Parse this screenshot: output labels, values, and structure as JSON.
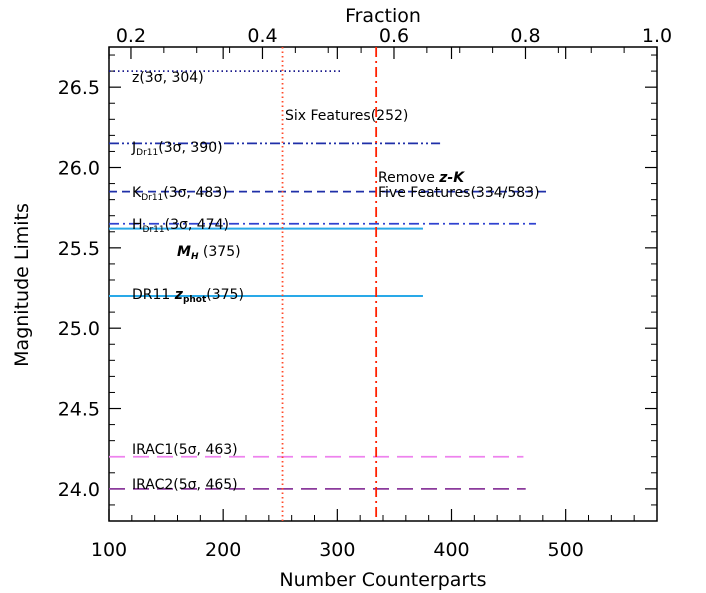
{
  "chart_data": {
    "type": "line",
    "xlabel": "Number Counterparts",
    "ylabel": "Magnitude Limits",
    "top_xlabel": "Fraction",
    "xlim": [
      100,
      580
    ],
    "ylim": [
      23.8,
      26.75
    ],
    "top_xlim": [
      0.1666,
      1.0
    ],
    "x_ticks": [
      100,
      200,
      300,
      400,
      500
    ],
    "y_ticks": [
      24.0,
      24.5,
      25.0,
      25.5,
      26.0,
      26.5
    ],
    "y_tick_labels": [
      "24.0",
      "24.5",
      "25.0",
      "25.5",
      "26.0",
      "26.5"
    ],
    "top_ticks": [
      0.2,
      0.4,
      0.6,
      0.8,
      1.0
    ],
    "grid": false,
    "series": [
      {
        "label": "z(3σ, 304)",
        "y": 26.6,
        "x_end": 304,
        "color": "#1a1a8c",
        "style": "dotted"
      },
      {
        "label": "J_Dr11(3σ, 390)",
        "y": 26.15,
        "x_end": 390,
        "color": "#1f2fa8",
        "style": "dashdotdot"
      },
      {
        "label": "K_Dr11(3σ, 483)",
        "y": 25.85,
        "x_end": 483,
        "color": "#1f2fa8",
        "style": "dashed"
      },
      {
        "label": "H_Dr11(3σ, 474)",
        "y": 25.65,
        "x_end": 474,
        "color": "#2f42d0",
        "style": "dashdot"
      },
      {
        "label": "M_H (375)",
        "y": 25.62,
        "x_end": 375,
        "color": "#29a9e8",
        "style": "solid"
      },
      {
        "label": "DR11 z_phot(375)",
        "y": 25.2,
        "x_end": 375,
        "color": "#29a9e8",
        "style": "solid"
      },
      {
        "label": "IRAC1(5σ, 463)",
        "y": 24.2,
        "x_end": 463,
        "color": "#ee82ee",
        "style": "longdash"
      },
      {
        "label": "IRAC2(5σ, 465)",
        "y": 24.0,
        "x_end": 465,
        "color": "#8b3a9c",
        "style": "longdash"
      }
    ],
    "vlines": [
      {
        "x": 252,
        "label": "Six Features(252)",
        "color": "#ff4a2a",
        "style": "dotted"
      },
      {
        "x": 334,
        "label": "Remove z-K Five Features(334/583)",
        "color": "#ff2000",
        "style": "dashdot"
      }
    ],
    "text": {
      "top_axis_title": "Fraction",
      "x_axis_title": "Number Counterparts",
      "y_axis_title": "Magnitude Limits",
      "six_features": "Six Features(252)",
      "remove_line1_a": "Remove ",
      "remove_line1_b": "z-K",
      "remove_line2": "Five Features(334/583)",
      "z_label": "z(3σ, 304)",
      "j_label_a": "J",
      "j_label_sub": "Dr11",
      "j_label_b": "(3σ, 390)",
      "k_label_a": "K",
      "k_label_sub": "Dr11",
      "k_label_b": "(3σ, 483)",
      "h_label_a": "H",
      "h_label_sub": "Dr11",
      "h_label_b": "(3σ, 474)",
      "mh_label_a": "M",
      "mh_label_sub": "H",
      "mh_label_b": " (375)",
      "dr11_label_a": "DR11 ",
      "dr11_label_b": "z",
      "dr11_label_sub": "phot",
      "dr11_label_c": "(375)",
      "irac1_label": "IRAC1(5σ, 463)",
      "irac2_label": "IRAC2(5σ, 465)"
    }
  }
}
